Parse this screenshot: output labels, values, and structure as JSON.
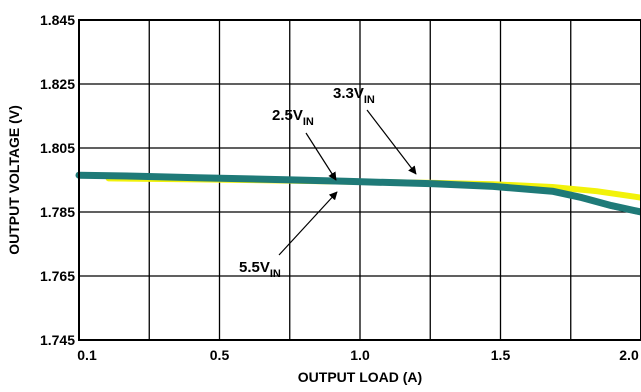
{
  "chart_data": {
    "type": "line",
    "title": "",
    "xlabel": "OUTPUT LOAD (A)",
    "ylabel": "OUTPUT VOLTAGE (V)",
    "x_tick_labels": [
      "0.1",
      "0.5",
      "1.0",
      "1.5",
      "2.0"
    ],
    "y_tick_labels": [
      "1.845",
      "1.825",
      "1.805",
      "1.785",
      "1.765",
      "1.745"
    ],
    "xlim": [
      0.1,
      2.0
    ],
    "ylim": [
      1.745,
      1.845
    ],
    "grid": true,
    "series": [
      {
        "name": "3.3V_IN",
        "color": "#f2f20a",
        "x": [
          0.2,
          0.5,
          0.8,
          1.0,
          1.3,
          1.5,
          1.7,
          1.85,
          2.0
        ],
        "y": [
          1.7955,
          1.7952,
          1.7948,
          1.7945,
          1.7941,
          1.7937,
          1.7928,
          1.7915,
          1.7895
        ]
      },
      {
        "name": "2.5V_IN",
        "color": "#1f7a78",
        "x": [
          0.1,
          0.3,
          0.5,
          0.8,
          1.0,
          1.3,
          1.5,
          1.7,
          1.8,
          1.9,
          2.0
        ],
        "y": [
          1.7965,
          1.7962,
          1.7957,
          1.7951,
          1.7946,
          1.7938,
          1.793,
          1.7915,
          1.7895,
          1.787,
          1.785
        ]
      },
      {
        "name": "5.5V_IN",
        "color": "#1f7a78",
        "x": [
          0.1,
          0.3,
          0.5,
          0.8,
          1.0,
          1.3,
          1.5,
          1.7,
          1.8,
          1.9,
          2.0
        ],
        "y": [
          1.7963,
          1.796,
          1.7955,
          1.7949,
          1.7944,
          1.7936,
          1.7928,
          1.7912,
          1.7892,
          1.7866,
          1.7846
        ]
      }
    ],
    "annotations": [
      {
        "main": "3.3V",
        "sub": "IN"
      },
      {
        "main": "2.5V",
        "sub": "IN"
      },
      {
        "main": "5.5V",
        "sub": "IN"
      }
    ]
  }
}
